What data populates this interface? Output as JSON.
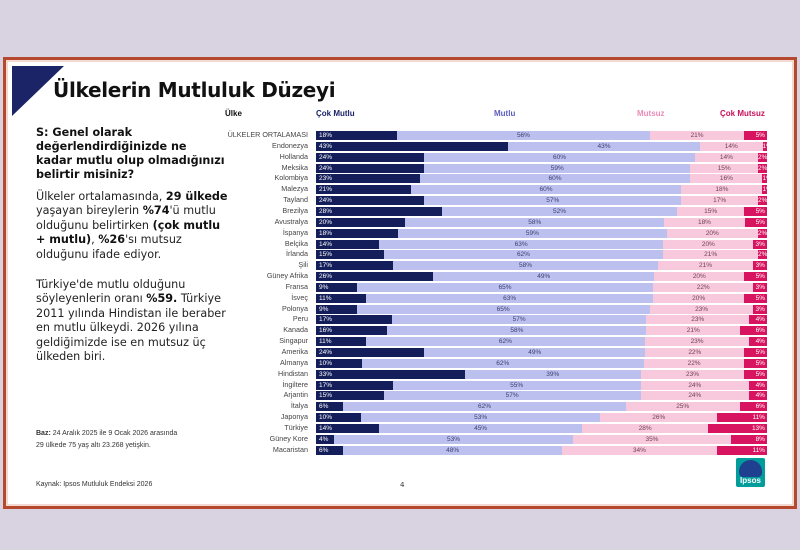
{
  "title": "Ülkelerin Mutluluk Düzeyi",
  "question": "S: Genel olarak değerlendirdiğinizde ne kadar mutlu olup olmadığınızı belirtir misiniz?",
  "para1": {
    "a": "Ülkeler ortalamasında, ",
    "b": "29 ülkede",
    "c": " yaşayan bireylerin ",
    "d": "%74",
    "e": "'ü mutlu olduğunu belirtirken ",
    "f": "(çok mutlu + mutlu)",
    "g": ", ",
    "h": "%26",
    "i": "'sı mutsuz olduğunu ifade ediyor."
  },
  "para2": {
    "a": "Türkiye'de  mutlu olduğunu söyleyenlerin oranı ",
    "b": "%59.",
    "c": " Türkiye 2011 yılında Hindistan ile beraber en mutlu ülkeydi. 2026 yılına geldiğimizde ise en mutsuz üç ülkeden biri."
  },
  "base": {
    "label": "Baz:",
    "line1": " 24 Aralık 2025 ile 9 Ocak 2026 arasında",
    "line2": "29 ülkede 75 yaş altı 23.268 yetişkin."
  },
  "source": "Kaynak: Ipsos Mutluluk Endeksi 2026",
  "page_number": "4",
  "logo_text": "Ipsos",
  "colors": {
    "cok_mutlu": "#141e5a",
    "mutlu": "#bcc0ee",
    "mutsuz": "#f8c8dc",
    "cok_mutsuz": "#d8135f",
    "border": "#b5482d"
  },
  "chart_data": {
    "type": "bar",
    "stacked": true,
    "orientation": "horizontal",
    "category_header": "Ülke",
    "categories": [
      "ÜLKELER ORTALAMASI",
      "Endonezya",
      "Hollanda",
      "Meksika",
      "Kolombiya",
      "Malezya",
      "Tayland",
      "Brezilya",
      "Avustralya",
      "İspanya",
      "Belçika",
      "İrlanda",
      "Şili",
      "Güney Afrika",
      "Fransa",
      "İsveç",
      "Polonya",
      "Peru",
      "Kanada",
      "Singapur",
      "Amerika",
      "Almanya",
      "Hindistan",
      "İngiltere",
      "Arjantin",
      "İtalya",
      "Japonya",
      "Türkiye",
      "Güney Kore",
      "Macaristan"
    ],
    "series": [
      {
        "name": "Çok Mutlu",
        "color": "#141e5a",
        "values": [
          18,
          43,
          24,
          24,
          23,
          21,
          24,
          28,
          20,
          18,
          14,
          15,
          17,
          26,
          9,
          11,
          9,
          17,
          16,
          11,
          24,
          10,
          33,
          17,
          15,
          6,
          10,
          14,
          4,
          6
        ]
      },
      {
        "name": "Mutlu",
        "color": "#7478c8",
        "values": [
          56,
          43,
          60,
          59,
          60,
          60,
          57,
          52,
          58,
          59,
          63,
          62,
          58,
          49,
          65,
          63,
          65,
          57,
          58,
          62,
          49,
          62,
          39,
          55,
          57,
          62,
          53,
          45,
          53,
          48
        ]
      },
      {
        "name": "Mutsuz",
        "color": "#e98cb8",
        "values": [
          21,
          14,
          14,
          15,
          16,
          18,
          17,
          15,
          18,
          20,
          20,
          21,
          21,
          20,
          22,
          20,
          23,
          23,
          21,
          23,
          22,
          22,
          23,
          24,
          24,
          25,
          26,
          28,
          35,
          34
        ]
      },
      {
        "name": "Çok Mutsuz",
        "color": "#d8135f",
        "values": [
          5,
          1,
          2,
          2,
          1,
          1,
          2,
          5,
          5,
          2,
          3,
          2,
          3,
          5,
          3,
          5,
          3,
          4,
          6,
          4,
          5,
          5,
          5,
          4,
          4,
          6,
          11,
          13,
          8,
          11
        ]
      }
    ],
    "value_suffix": "%",
    "xlim": [
      0,
      100
    ]
  }
}
